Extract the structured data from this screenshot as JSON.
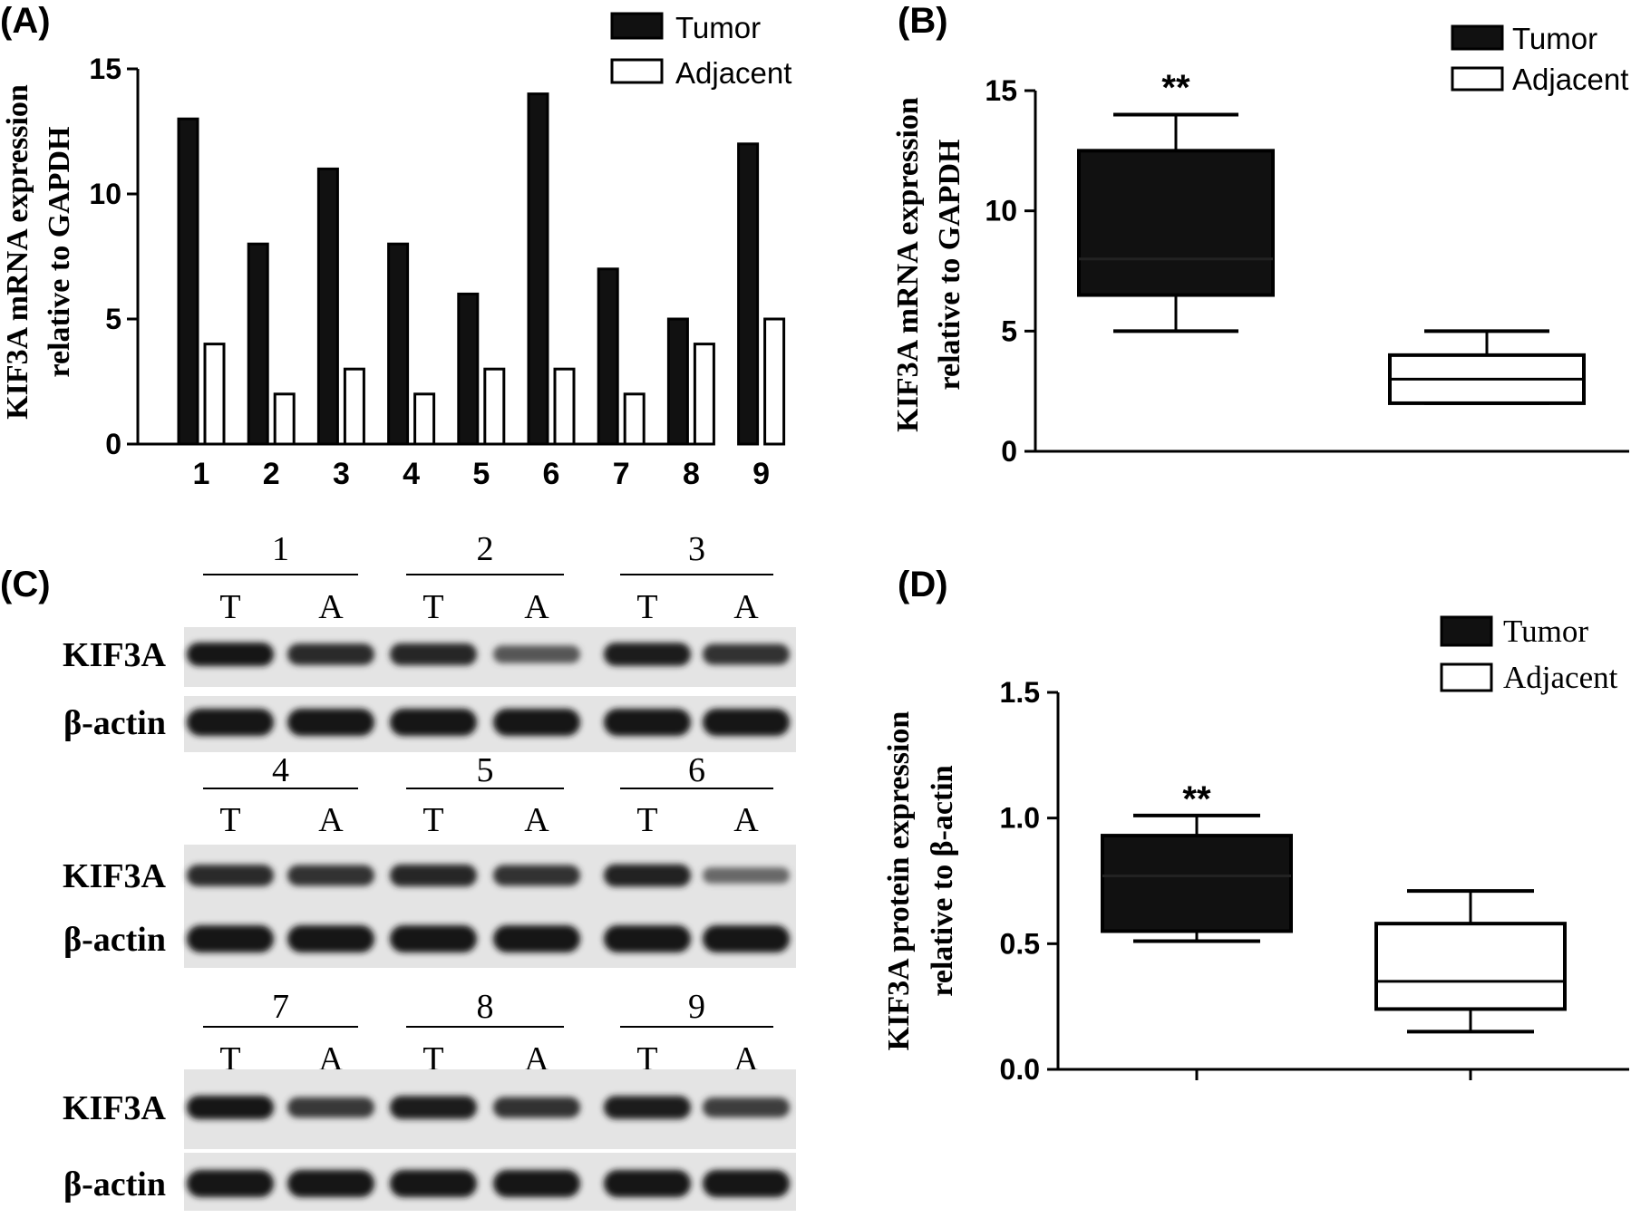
{
  "panels": {
    "A": {
      "label": "(A)"
    },
    "B": {
      "label": "(B)"
    },
    "C": {
      "label": "(C)"
    },
    "D": {
      "label": "(D)"
    }
  },
  "legend": {
    "tumor": "Tumor",
    "adjacent": "Adjacent"
  },
  "colors": {
    "tumor": "#111111",
    "adjacent": "#ffffff",
    "axis": "#000000"
  },
  "chart_data": [
    {
      "panel": "A",
      "type": "bar",
      "categories": [
        "1",
        "2",
        "3",
        "4",
        "5",
        "6",
        "7",
        "8",
        "9"
      ],
      "series": [
        {
          "name": "Tumor",
          "values": [
            13,
            8,
            11,
            8,
            6,
            14,
            7,
            5,
            12
          ]
        },
        {
          "name": "Adjacent",
          "values": [
            4,
            2,
            3,
            2,
            3,
            3,
            2,
            4,
            5
          ]
        }
      ],
      "ylabel_line1": "KIF3A mRNA expression",
      "ylabel_line2": "relative to GAPDH",
      "ylim": [
        0,
        15
      ],
      "yticks": [
        "0",
        "5",
        "10",
        "15"
      ],
      "legend_position": "top-right"
    },
    {
      "panel": "B",
      "type": "box",
      "boxes": [
        {
          "name": "Tumor",
          "min": 5,
          "q1": 6.5,
          "median": 8,
          "q3": 12.5,
          "max": 14
        },
        {
          "name": "Adjacent",
          "min": 2,
          "q1": 2,
          "median": 3,
          "q3": 4,
          "max": 5
        }
      ],
      "annotation": "**",
      "ylabel_line1": "KIF3A mRNA expression",
      "ylabel_line2": "relative to GAPDH",
      "ylim": [
        0,
        15
      ],
      "yticks": [
        "0",
        "5",
        "10",
        "15"
      ],
      "legend_position": "top-right"
    },
    {
      "panel": "D",
      "type": "box",
      "boxes": [
        {
          "name": "Tumor",
          "min": 0.51,
          "q1": 0.55,
          "median": 0.77,
          "q3": 0.93,
          "max": 1.01
        },
        {
          "name": "Adjacent",
          "min": 0.15,
          "q1": 0.24,
          "median": 0.35,
          "q3": 0.58,
          "max": 0.71
        }
      ],
      "annotation": "**",
      "ylabel_line1": "KIF3A protein expression",
      "ylabel_line2": "relative to β-actin",
      "ylim": [
        0,
        1.5
      ],
      "yticks": [
        "0.0",
        "0.5",
        "1.0",
        "1.5"
      ],
      "legend_position": "top-right"
    }
  ],
  "blot": {
    "lane_labels": {
      "tumor": "T",
      "adjacent": "A"
    },
    "rows": {
      "target": "KIF3A",
      "control": "β-actin"
    },
    "groups": [
      {
        "samples": [
          "1",
          "2",
          "3"
        ]
      },
      {
        "samples": [
          "4",
          "5",
          "6"
        ]
      },
      {
        "samples": [
          "7",
          "8",
          "9"
        ]
      }
    ]
  }
}
